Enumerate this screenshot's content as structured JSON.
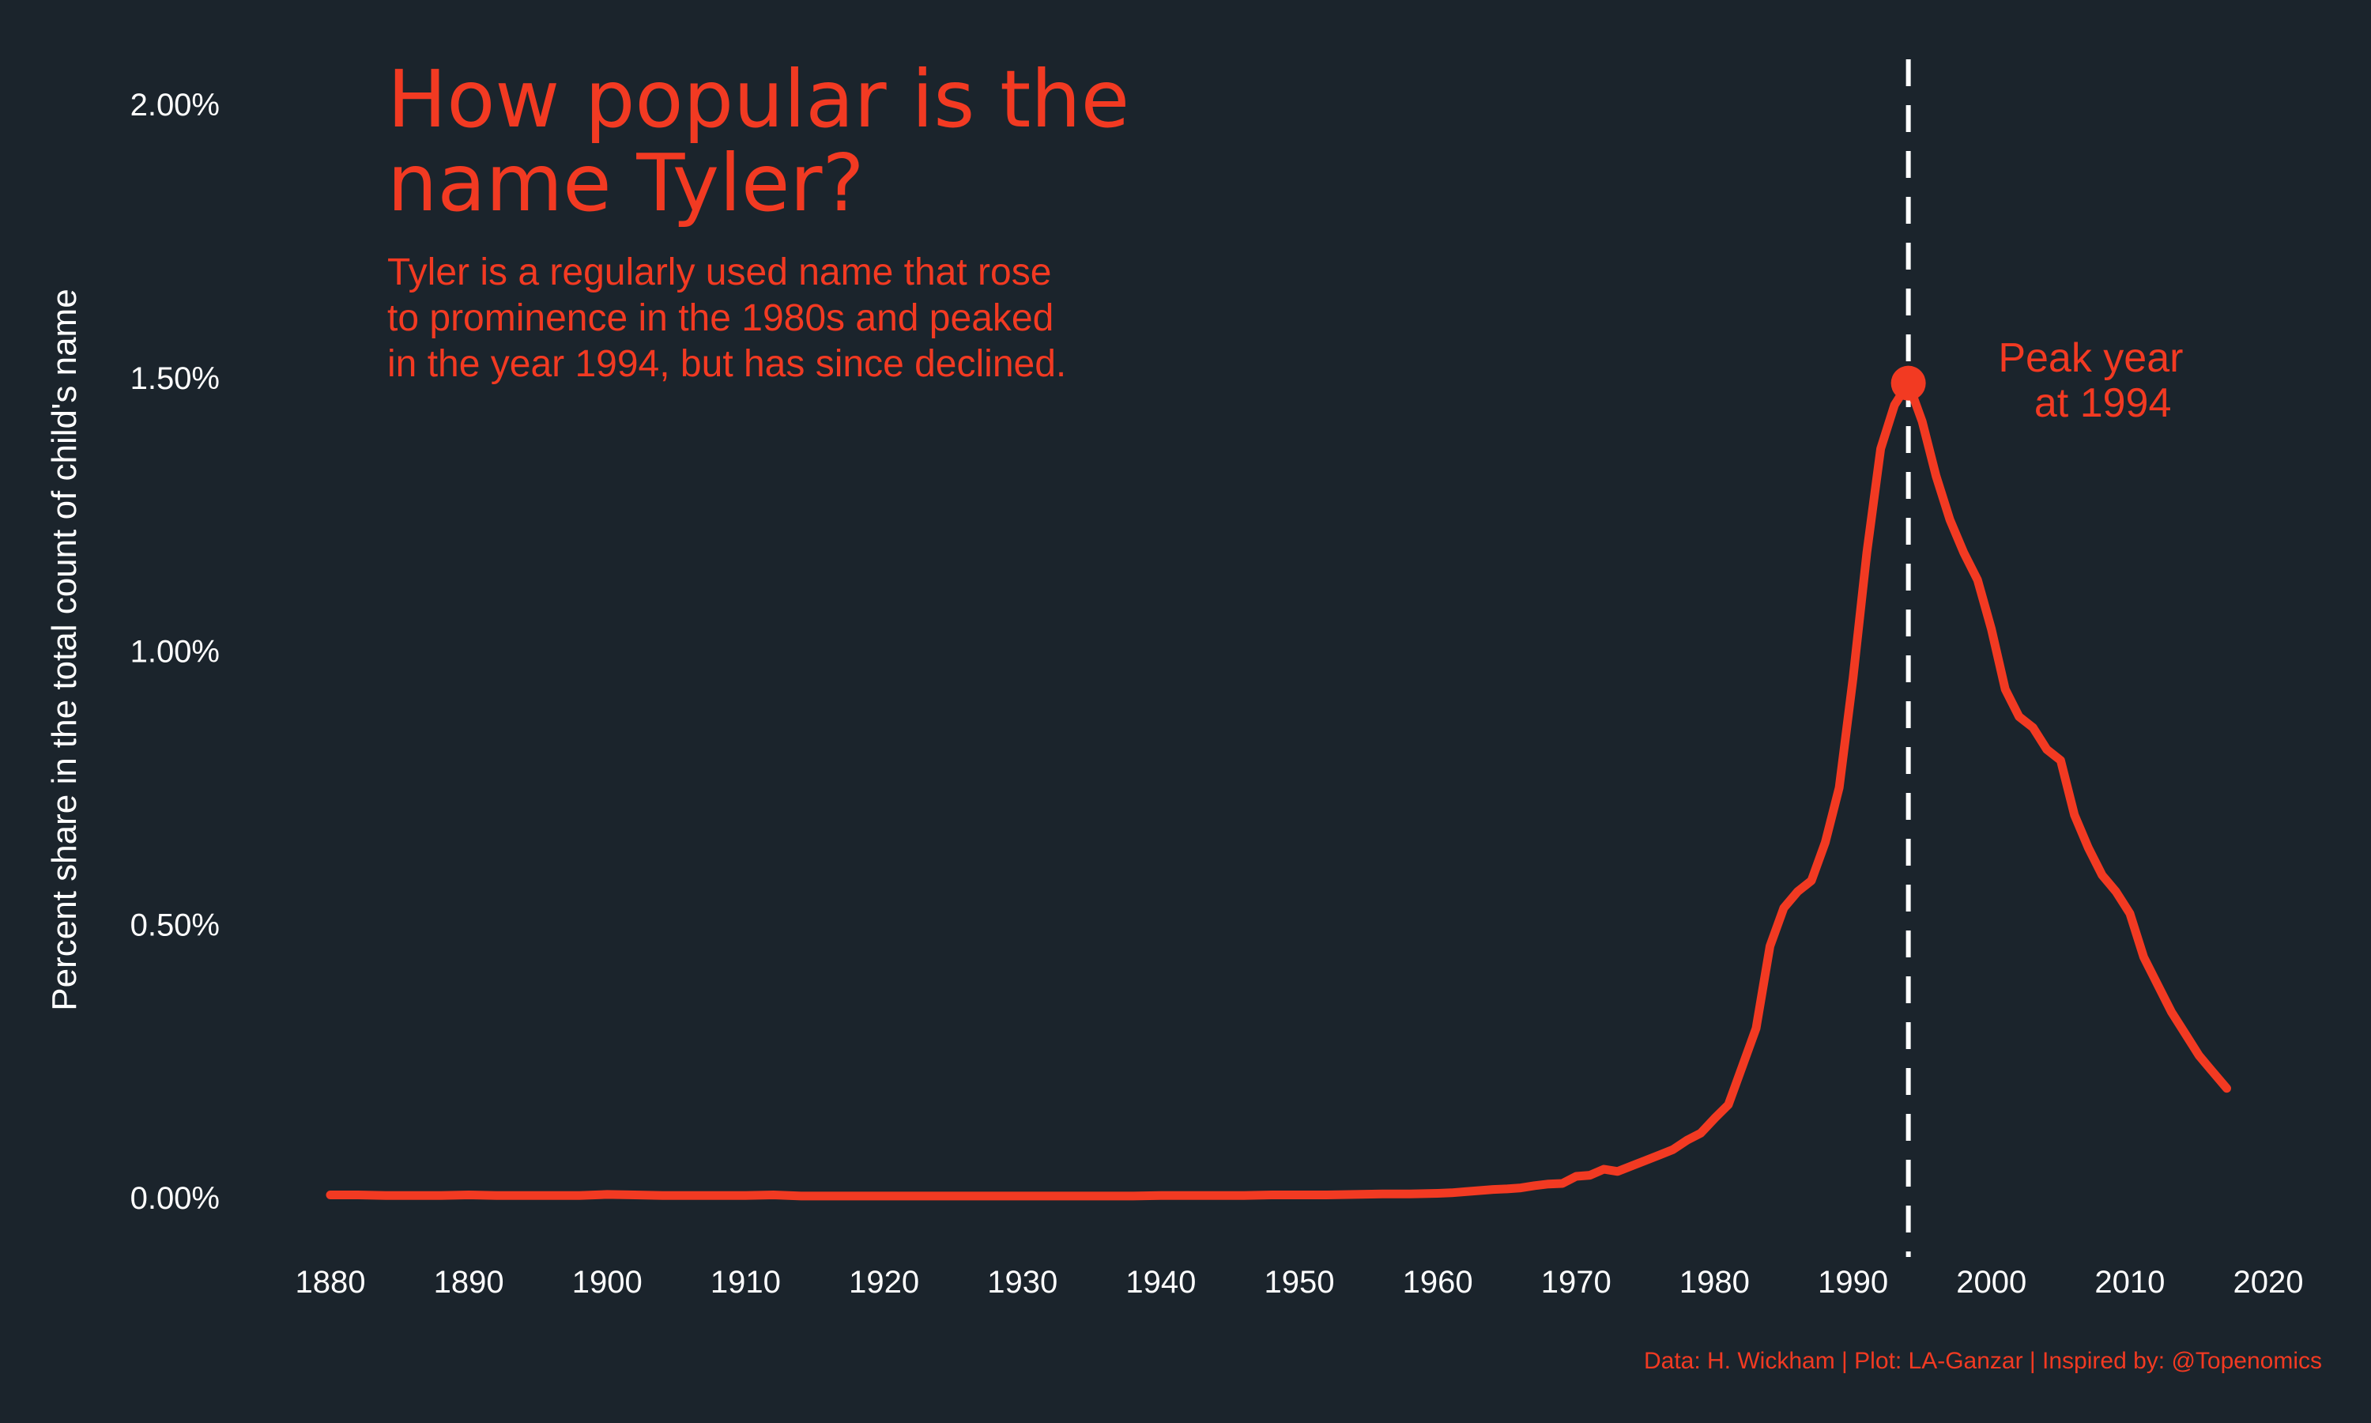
{
  "chart_data": {
    "type": "line",
    "title_lines": [
      "How popular is the",
      "name Tyler?"
    ],
    "subtitle_lines": [
      "Tyler is a regularly used name that rose",
      "to prominence in the 1980s and peaked",
      "in the year 1994, but has since declined."
    ],
    "ylabel": "Percent share in the total count of child's name",
    "xlabel": "",
    "xlim": [
      1880,
      2020
    ],
    "ylim": [
      0,
      2.0
    ],
    "x_ticks": [
      1880,
      1890,
      1900,
      1910,
      1920,
      1930,
      1940,
      1950,
      1960,
      1970,
      1980,
      1990,
      2000,
      2010,
      2020
    ],
    "x_tick_labels": [
      "1880",
      "1890",
      "1900",
      "1910",
      "1920",
      "1930",
      "1940",
      "1950",
      "1960",
      "1970",
      "1980",
      "1990",
      "2000",
      "2010",
      "2020"
    ],
    "y_ticks": [
      0,
      0.5,
      1.0,
      1.5,
      2.0
    ],
    "y_tick_labels": [
      "0.00%",
      "0.50%",
      "1.00%",
      "1.50%",
      "2.00%"
    ],
    "grid": false,
    "series": [
      {
        "color": "#f23a22",
        "x": [
          1880,
          1882,
          1884,
          1886,
          1888,
          1890,
          1892,
          1894,
          1896,
          1898,
          1900,
          1902,
          1904,
          1906,
          1908,
          1910,
          1912,
          1914,
          1916,
          1918,
          1920,
          1922,
          1924,
          1926,
          1928,
          1930,
          1932,
          1934,
          1936,
          1938,
          1940,
          1942,
          1944,
          1946,
          1948,
          1950,
          1952,
          1954,
          1956,
          1958,
          1960,
          1961,
          1962,
          1963,
          1964,
          1965,
          1966,
          1967,
          1968,
          1969,
          1970,
          1971,
          1972,
          1973,
          1974,
          1975,
          1976,
          1977,
          1978,
          1979,
          1980,
          1981,
          1982,
          1983,
          1984,
          1985,
          1986,
          1987,
          1988,
          1989,
          1990,
          1991,
          1992,
          1993,
          1994,
          1995,
          1996,
          1997,
          1998,
          1999,
          2000,
          2001,
          2002,
          2003,
          2004,
          2005,
          2006,
          2007,
          2008,
          2009,
          2010,
          2011,
          2012,
          2013,
          2014,
          2015,
          2016,
          2017
        ],
        "values": [
          0.005,
          0.005,
          0.004,
          0.004,
          0.004,
          0.005,
          0.004,
          0.004,
          0.004,
          0.004,
          0.006,
          0.005,
          0.004,
          0.004,
          0.004,
          0.004,
          0.005,
          0.003,
          0.003,
          0.003,
          0.003,
          0.003,
          0.003,
          0.003,
          0.003,
          0.003,
          0.003,
          0.003,
          0.003,
          0.003,
          0.004,
          0.004,
          0.004,
          0.004,
          0.005,
          0.005,
          0.005,
          0.006,
          0.007,
          0.007,
          0.008,
          0.009,
          0.011,
          0.013,
          0.015,
          0.016,
          0.018,
          0.022,
          0.025,
          0.026,
          0.039,
          0.041,
          0.052,
          0.048,
          0.058,
          0.068,
          0.078,
          0.088,
          0.105,
          0.118,
          0.145,
          0.17,
          0.24,
          0.31,
          0.46,
          0.53,
          0.56,
          0.58,
          0.65,
          0.75,
          0.95,
          1.18,
          1.37,
          1.45,
          1.49,
          1.42,
          1.32,
          1.24,
          1.18,
          1.13,
          1.04,
          0.93,
          0.88,
          0.86,
          0.82,
          0.8,
          0.7,
          0.64,
          0.59,
          0.56,
          0.52,
          0.44,
          0.39,
          0.34,
          0.3,
          0.26,
          0.23,
          0.2
        ]
      }
    ],
    "peak": {
      "x": 1994,
      "y": 1.49,
      "label_lines": [
        "Peak year",
        "at 1994"
      ]
    },
    "caption": "Data: H. Wickham | Plot: LA-Ganzar | Inspired by: @Topenomics",
    "colors": {
      "background": "#1b242c",
      "accent": "#f23a22",
      "reference_line": "#ffffff",
      "text": "#ffffff"
    }
  }
}
